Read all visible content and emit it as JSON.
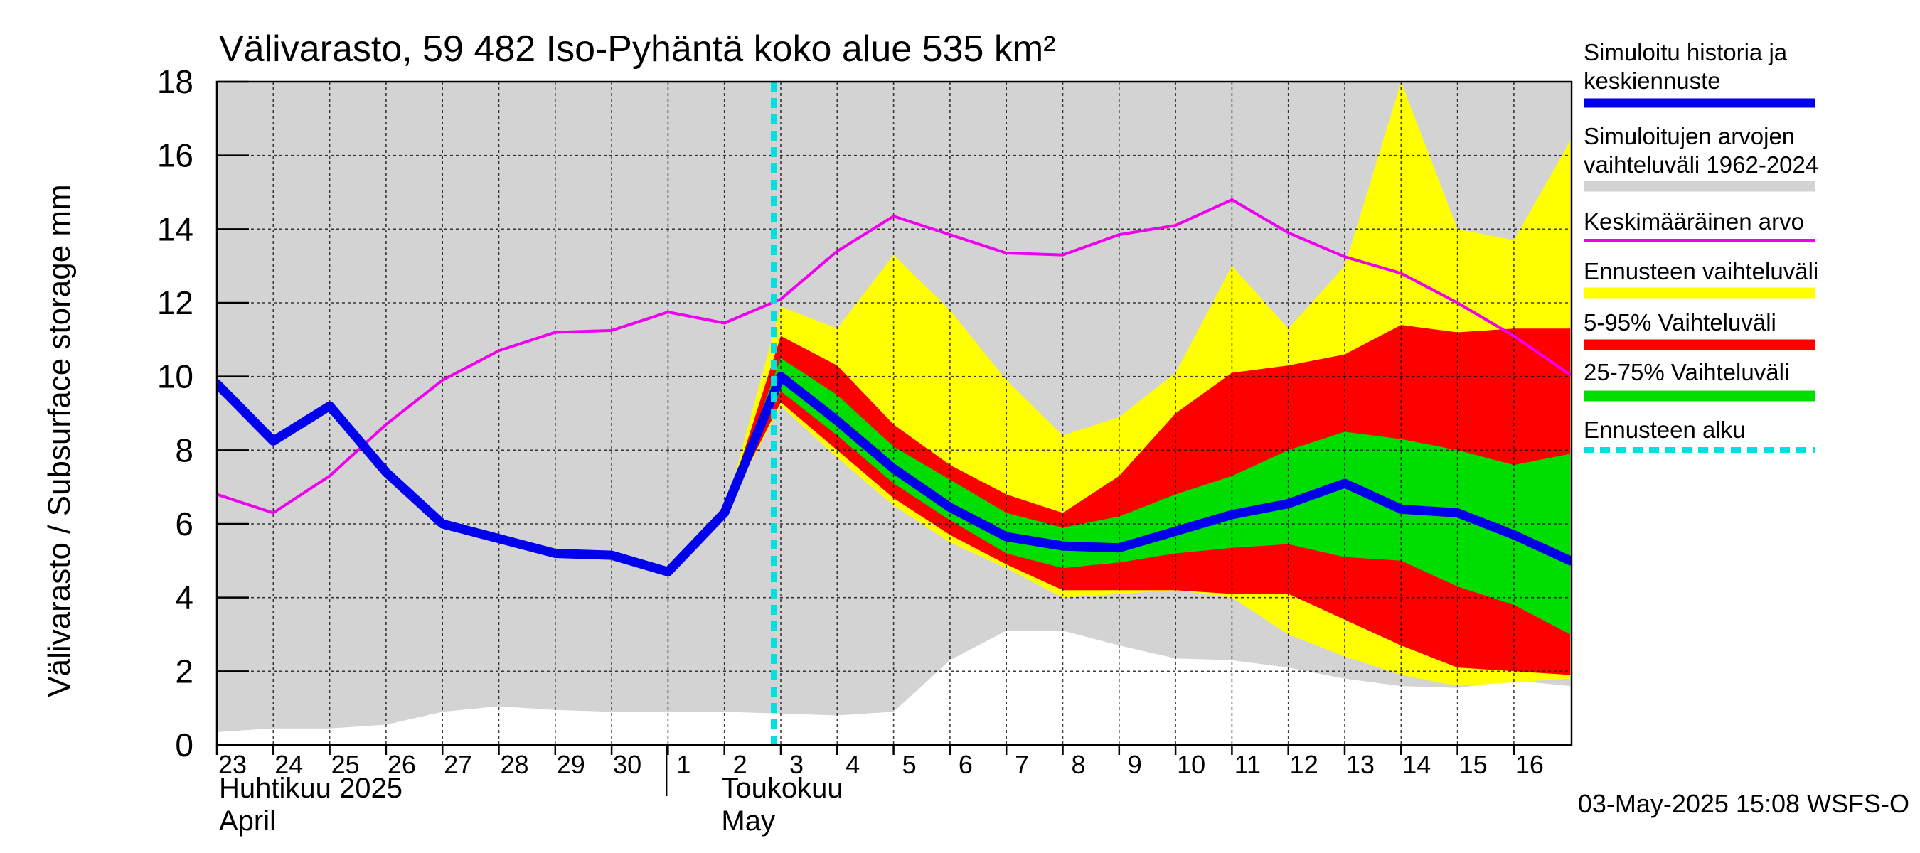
{
  "chart_data": {
    "type": "area",
    "title": "Välivarasto, 59 482 Iso-Pyhäntä koko alue 535 km²",
    "ylabel": "Välivarasto / Subsurface storage  mm",
    "ylim": [
      0,
      18
    ],
    "yticks": [
      0,
      2,
      4,
      6,
      8,
      10,
      12,
      14,
      16,
      18
    ],
    "grid": true,
    "legend_position": "right",
    "x_days": [
      "23",
      "24",
      "25",
      "26",
      "27",
      "28",
      "29",
      "30",
      "1",
      "2",
      "3",
      "4",
      "5",
      "6",
      "7",
      "8",
      "9",
      "10",
      "11",
      "12",
      "13",
      "14",
      "15",
      "16"
    ],
    "x_start_date": "2025-04-23",
    "month_labels": [
      {
        "date": "2025-04-23",
        "fi": "Huhtikuu  2025",
        "en": "April"
      },
      {
        "date": "2025-05-01",
        "fi": "Toukokuu",
        "en": "May"
      }
    ],
    "forecast_start": "2025-05-03",
    "timestamp": "03-May-2025 15:08 WSFS-O",
    "colors": {
      "history_range": "#d3d3d3",
      "forecast_range": "#ffff00",
      "p5_95": "#ff0000",
      "p25_75": "#00dd00",
      "median": "#0000ee",
      "mean": "#ee00ee",
      "forecast_start": "#00e0e0"
    },
    "series": [
      {
        "key": "history_range",
        "name": "Simuloitujen arvojen vaihteluväli 1962-2024",
        "dates": [
          "2025-04-23",
          "2025-04-24",
          "2025-04-25",
          "2025-04-26",
          "2025-04-27",
          "2025-04-28",
          "2025-04-29",
          "2025-04-30",
          "2025-05-01",
          "2025-05-02",
          "2025-05-03",
          "2025-05-04",
          "2025-05-05",
          "2025-05-06",
          "2025-05-07",
          "2025-05-08",
          "2025-05-09",
          "2025-05-10",
          "2025-05-11",
          "2025-05-12",
          "2025-05-13",
          "2025-05-14",
          "2025-05-15",
          "2025-05-16",
          "2025-05-17"
        ],
        "lower": [
          0.35,
          0.45,
          0.45,
          0.55,
          0.9,
          1.05,
          0.95,
          0.9,
          0.9,
          0.9,
          0.85,
          0.8,
          0.9,
          2.3,
          3.1,
          3.1,
          2.7,
          2.35,
          2.3,
          2.1,
          1.8,
          1.6,
          1.55,
          1.75,
          1.6
        ],
        "upper": [
          18,
          18,
          18,
          18,
          18,
          18,
          18,
          18,
          18,
          18,
          18,
          18,
          18,
          18,
          18,
          18,
          18,
          18,
          18,
          18,
          18,
          18,
          18,
          18,
          18
        ]
      },
      {
        "key": "forecast_range",
        "name": "Ennusteen vaihteluväli",
        "dates": [
          "2025-05-02",
          "2025-05-03",
          "2025-05-04",
          "2025-05-05",
          "2025-05-06",
          "2025-05-07",
          "2025-05-08",
          "2025-05-09",
          "2025-05-10",
          "2025-05-11",
          "2025-05-12",
          "2025-05-13",
          "2025-05-14",
          "2025-05-15",
          "2025-05-16",
          "2025-05-17"
        ],
        "lower": [
          6.3,
          9.2,
          7.8,
          6.5,
          5.5,
          4.8,
          4.0,
          4.1,
          4.2,
          4.0,
          3.0,
          2.4,
          1.9,
          1.6,
          1.7,
          1.8
        ],
        "upper": [
          6.3,
          11.9,
          11.3,
          13.3,
          11.8,
          9.9,
          8.4,
          8.9,
          10.1,
          13.0,
          11.3,
          13.0,
          18.0,
          14.0,
          13.7,
          16.4
        ]
      },
      {
        "key": "p5_95",
        "name": "5-95% Vaihteluväli",
        "dates": [
          "2025-05-02",
          "2025-05-03",
          "2025-05-04",
          "2025-05-05",
          "2025-05-06",
          "2025-05-07",
          "2025-05-08",
          "2025-05-09",
          "2025-05-10",
          "2025-05-11",
          "2025-05-12",
          "2025-05-13",
          "2025-05-14",
          "2025-05-15",
          "2025-05-16",
          "2025-05-17"
        ],
        "lower": [
          6.3,
          9.3,
          8.0,
          6.7,
          5.7,
          4.9,
          4.2,
          4.2,
          4.2,
          4.1,
          4.1,
          3.4,
          2.7,
          2.1,
          2.0,
          1.9
        ],
        "upper": [
          6.3,
          11.1,
          10.3,
          8.7,
          7.6,
          6.8,
          6.3,
          7.3,
          9.0,
          10.1,
          10.3,
          10.6,
          11.4,
          11.2,
          11.3,
          11.3
        ]
      },
      {
        "key": "p25_75",
        "name": "25-75% Vaihteluväli",
        "dates": [
          "2025-05-02",
          "2025-05-03",
          "2025-05-04",
          "2025-05-05",
          "2025-05-06",
          "2025-05-07",
          "2025-05-08",
          "2025-05-09",
          "2025-05-10",
          "2025-05-11",
          "2025-05-12",
          "2025-05-13",
          "2025-05-14",
          "2025-05-15",
          "2025-05-16",
          "2025-05-17"
        ],
        "lower": [
          6.3,
          9.6,
          8.4,
          7.1,
          6.1,
          5.2,
          4.8,
          4.95,
          5.2,
          5.35,
          5.45,
          5.1,
          5.0,
          4.3,
          3.8,
          3.0
        ],
        "upper": [
          6.3,
          10.5,
          9.5,
          8.1,
          7.2,
          6.3,
          5.9,
          6.2,
          6.8,
          7.3,
          8.0,
          8.5,
          8.3,
          8.0,
          7.6,
          7.9
        ]
      },
      {
        "key": "mean",
        "name": "Keskimääräinen arvo",
        "dates": [
          "2025-04-23",
          "2025-04-24",
          "2025-04-25",
          "2025-04-26",
          "2025-04-27",
          "2025-04-28",
          "2025-04-29",
          "2025-04-30",
          "2025-05-01",
          "2025-05-02",
          "2025-05-03",
          "2025-05-04",
          "2025-05-05",
          "2025-05-06",
          "2025-05-07",
          "2025-05-08",
          "2025-05-09",
          "2025-05-10",
          "2025-05-11",
          "2025-05-12",
          "2025-05-13",
          "2025-05-14",
          "2025-05-15",
          "2025-05-16",
          "2025-05-17"
        ],
        "values": [
          6.8,
          6.3,
          7.3,
          8.7,
          9.9,
          10.7,
          11.2,
          11.25,
          11.75,
          11.45,
          12.1,
          13.4,
          14.35,
          13.85,
          13.35,
          13.3,
          13.85,
          14.1,
          14.8,
          13.9,
          13.25,
          12.8,
          12.0,
          11.1,
          10.05
        ]
      },
      {
        "key": "median",
        "name": "Simuloitu historia ja keskiennuste",
        "dates": [
          "2025-04-23",
          "2025-04-24",
          "2025-04-25",
          "2025-04-26",
          "2025-04-27",
          "2025-04-28",
          "2025-04-29",
          "2025-04-30",
          "2025-05-01",
          "2025-05-02",
          "2025-05-03",
          "2025-05-04",
          "2025-05-05",
          "2025-05-06",
          "2025-05-07",
          "2025-05-08",
          "2025-05-09",
          "2025-05-10",
          "2025-05-11",
          "2025-05-12",
          "2025-05-13",
          "2025-05-14",
          "2025-05-15",
          "2025-05-16",
          "2025-05-17"
        ],
        "values": [
          9.8,
          8.25,
          9.2,
          7.4,
          6.0,
          5.6,
          5.2,
          5.15,
          4.7,
          6.3,
          10.0,
          8.8,
          7.5,
          6.45,
          5.65,
          5.4,
          5.35,
          5.8,
          6.25,
          6.55,
          7.1,
          6.4,
          6.3,
          5.7,
          5.0
        ]
      }
    ],
    "legend": [
      {
        "key": "median",
        "lines": [
          "Simuloitu historia ja",
          "keskiennuste"
        ],
        "style": "thick"
      },
      {
        "key": "history_range",
        "lines": [
          "Simuloitujen arvojen",
          "vaihteluväli 1962-2024"
        ],
        "style": "band"
      },
      {
        "key": "mean",
        "lines": [
          "Keskimääräinen arvo"
        ],
        "style": "thin"
      },
      {
        "key": "forecast_range",
        "lines": [
          "Ennusteen vaihteluväli"
        ],
        "style": "band"
      },
      {
        "key": "p5_95",
        "lines": [
          "5-95% Vaihteluväli"
        ],
        "style": "band"
      },
      {
        "key": "p25_75",
        "lines": [
          "25-75% Vaihteluväli"
        ],
        "style": "band"
      },
      {
        "key": "forecast_start",
        "lines": [
          "Ennusteen alku"
        ],
        "style": "dashed"
      }
    ]
  }
}
